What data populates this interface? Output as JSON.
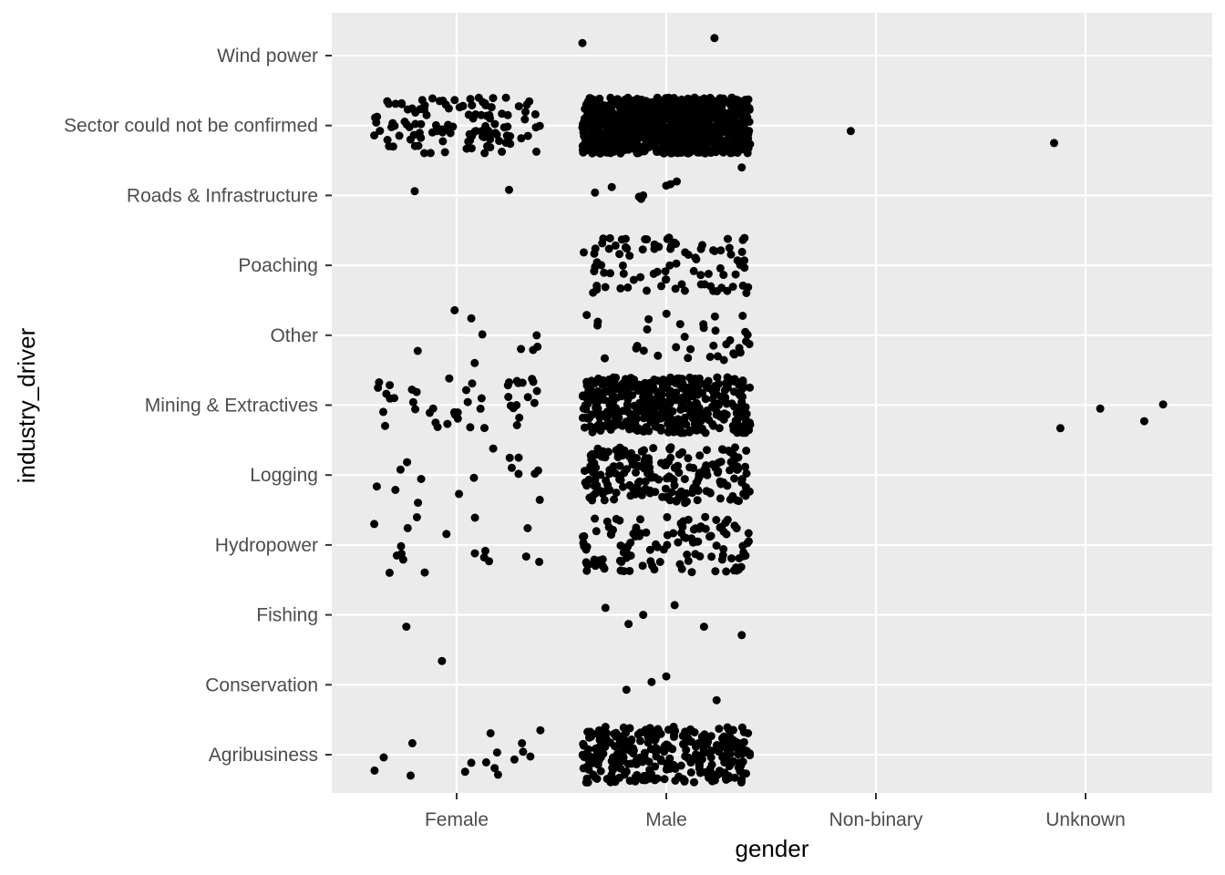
{
  "chart_data": {
    "type": "scatter",
    "subtype": "jitter",
    "title": "",
    "xlabel": "gender",
    "ylabel": "industry_driver",
    "x_categories": [
      "Female",
      "Male",
      "Non-binary",
      "Unknown"
    ],
    "y_categories": [
      "Agribusiness",
      "Conservation",
      "Fishing",
      "Hydropower",
      "Logging",
      "Mining & Extractives",
      "Other",
      "Poaching",
      "Roads & Infrastructure",
      "Sector could not be confirmed",
      "Wind power"
    ],
    "grid": true,
    "legend": "none",
    "point_color": "#000000",
    "panel_background": "#ebebeb",
    "grid_color": "#ffffff",
    "cells": [
      {
        "gender": "Female",
        "industry_driver": "Wind power",
        "approx_count": 0
      },
      {
        "gender": "Male",
        "industry_driver": "Wind power",
        "approx_count": 2,
        "points": [
          [
            -0.4,
            0.18
          ],
          [
            0.23,
            0.25
          ]
        ]
      },
      {
        "gender": "Female",
        "industry_driver": "Sector could not be confirmed",
        "approx_count": 120
      },
      {
        "gender": "Male",
        "industry_driver": "Sector could not be confirmed",
        "approx_count": 1000
      },
      {
        "gender": "Non-binary",
        "industry_driver": "Sector could not be confirmed",
        "approx_count": 1,
        "points": [
          [
            -0.12,
            -0.08
          ]
        ]
      },
      {
        "gender": "Unknown",
        "industry_driver": "Sector could not be confirmed",
        "approx_count": 1,
        "points": [
          [
            -0.15,
            -0.25
          ]
        ]
      },
      {
        "gender": "Female",
        "industry_driver": "Roads & Infrastructure",
        "approx_count": 2,
        "points": [
          [
            -0.2,
            0.06
          ],
          [
            0.25,
            0.08
          ]
        ]
      },
      {
        "gender": "Male",
        "industry_driver": "Roads & Infrastructure",
        "approx_count": 9,
        "points": [
          [
            -0.34,
            0.04
          ],
          [
            -0.26,
            0.12
          ],
          [
            -0.13,
            -0.02
          ],
          [
            -0.11,
            0.0
          ],
          [
            0.0,
            0.14
          ],
          [
            0.05,
            0.2
          ],
          [
            0.36,
            0.4
          ],
          [
            -0.12,
            -0.05
          ],
          [
            0.02,
            0.16
          ]
        ]
      },
      {
        "gender": "Female",
        "industry_driver": "Poaching",
        "approx_count": 0
      },
      {
        "gender": "Male",
        "industry_driver": "Poaching",
        "approx_count": 90
      },
      {
        "gender": "Female",
        "industry_driver": "Other",
        "approx_count": 9
      },
      {
        "gender": "Male",
        "industry_driver": "Other",
        "approx_count": 35
      },
      {
        "gender": "Female",
        "industry_driver": "Mining & Extractives",
        "approx_count": 45
      },
      {
        "gender": "Male",
        "industry_driver": "Mining & Extractives",
        "approx_count": 420
      },
      {
        "gender": "Unknown",
        "industry_driver": "Mining & Extractives",
        "approx_count": 4,
        "points": [
          [
            -0.12,
            -0.33
          ],
          [
            0.07,
            -0.05
          ],
          [
            0.28,
            -0.23
          ],
          [
            0.37,
            0.01
          ]
        ]
      },
      {
        "gender": "Female",
        "industry_driver": "Logging",
        "approx_count": 16
      },
      {
        "gender": "Male",
        "industry_driver": "Logging",
        "approx_count": 200
      },
      {
        "gender": "Female",
        "industry_driver": "Hydropower",
        "approx_count": 18
      },
      {
        "gender": "Male",
        "industry_driver": "Hydropower",
        "approx_count": 120
      },
      {
        "gender": "Female",
        "industry_driver": "Fishing",
        "approx_count": 1,
        "points": [
          [
            -0.24,
            -0.17
          ]
        ]
      },
      {
        "gender": "Male",
        "industry_driver": "Fishing",
        "approx_count": 6,
        "points": [
          [
            -0.29,
            0.1
          ],
          [
            -0.18,
            -0.13
          ],
          [
            -0.11,
            0.0
          ],
          [
            0.04,
            0.14
          ],
          [
            0.18,
            -0.17
          ],
          [
            0.36,
            -0.29
          ]
        ]
      },
      {
        "gender": "Female",
        "industry_driver": "Conservation",
        "approx_count": 1,
        "points": [
          [
            -0.07,
            0.34
          ]
        ]
      },
      {
        "gender": "Male",
        "industry_driver": "Conservation",
        "approx_count": 4,
        "points": [
          [
            -0.19,
            -0.07
          ],
          [
            -0.07,
            0.04
          ],
          [
            0.0,
            0.12
          ],
          [
            0.24,
            -0.22
          ]
        ]
      },
      {
        "gender": "Female",
        "industry_driver": "Agribusiness",
        "approx_count": 16
      },
      {
        "gender": "Male",
        "industry_driver": "Agribusiness",
        "approx_count": 300
      }
    ]
  }
}
